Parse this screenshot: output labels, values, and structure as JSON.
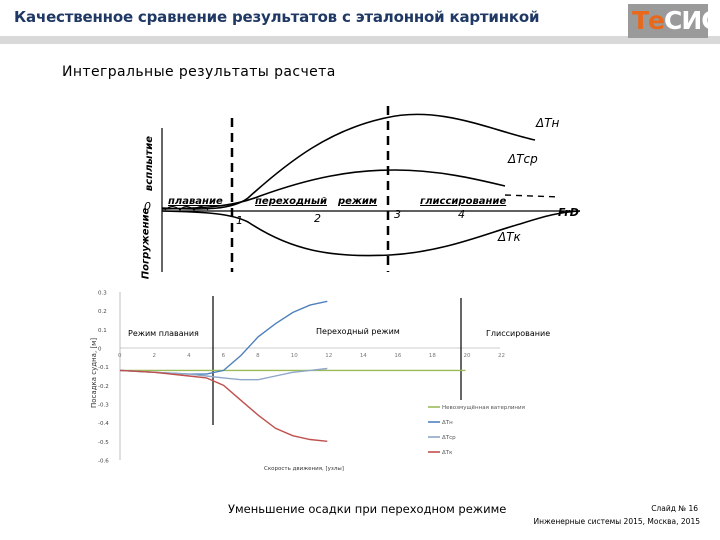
{
  "header": {
    "title": "Качественное сравнение результатов с эталонной картинкой",
    "logo_a": "Те",
    "logo_b": "СИС"
  },
  "subtitle": "Интегральные результаты расчета",
  "reference_figure": {
    "y_label_up": "всплытие",
    "y_label_down": "Погружение",
    "origin": "0",
    "phase_1": "плавание",
    "phase_2": "переходный",
    "phase_3": "режим",
    "phase_4": "глиссирование",
    "tick_1": "1",
    "tick_2": "2",
    "tick_3": "3",
    "tick_4": "4",
    "x_axis": "FrD",
    "curve_tn": "ΔТн",
    "curve_tcp": "ΔТср",
    "curve_tk": "ΔТк"
  },
  "chart_data": {
    "type": "line",
    "ylabel": "Посадка судна, [м]",
    "xlabel": "Скорость движения, [узлы]",
    "x_ticks": [
      "0",
      "2",
      "4",
      "6",
      "8",
      "10",
      "12",
      "14",
      "16",
      "18",
      "20",
      "22"
    ],
    "y_ticks": [
      "0.3",
      "0.2",
      "0.1",
      "0",
      "-0.1",
      "-0.2",
      "-0.3",
      "-0.4",
      "-0.5",
      "-0.6"
    ],
    "xlim": [
      0,
      22
    ],
    "ylim": [
      -0.6,
      0.3
    ],
    "regions": [
      "Режим плавания",
      "Переходный режим",
      "Глиссирование"
    ],
    "series": [
      {
        "name": "Невозмущённая ватерлиния",
        "x": [
          0,
          20
        ],
        "y": [
          -0.12,
          -0.12
        ]
      },
      {
        "name": "ΔТн",
        "x": [
          0,
          2,
          4,
          5,
          6,
          7,
          8,
          9,
          10,
          11,
          12
        ],
        "y": [
          -0.12,
          -0.13,
          -0.14,
          -0.14,
          -0.12,
          -0.04,
          0.06,
          0.13,
          0.19,
          0.23,
          0.25
        ]
      },
      {
        "name": "ΔТср",
        "x": [
          0,
          2,
          4,
          5,
          6,
          7,
          8,
          9,
          10,
          11,
          12
        ],
        "y": [
          -0.12,
          -0.13,
          -0.14,
          -0.15,
          -0.16,
          -0.17,
          -0.17,
          -0.15,
          -0.13,
          -0.12,
          -0.11
        ]
      },
      {
        "name": "ΔТк",
        "x": [
          0,
          2,
          4,
          5,
          6,
          7,
          8,
          9,
          10,
          11,
          12
        ],
        "y": [
          -0.12,
          -0.13,
          -0.15,
          -0.16,
          -0.2,
          -0.28,
          -0.36,
          -0.43,
          -0.47,
          -0.49,
          -0.5
        ]
      }
    ],
    "colors": [
      "#9bbb59",
      "#4f81bd",
      "#8ea6c8",
      "#c0504d"
    ],
    "grid": false,
    "legend": "bottom-right"
  },
  "caption": "Уменьшение осадки при переходном режиме",
  "footer": {
    "slide": "Слайд № 16",
    "org": "Инженерные системы 2015, Москва, 2015"
  }
}
